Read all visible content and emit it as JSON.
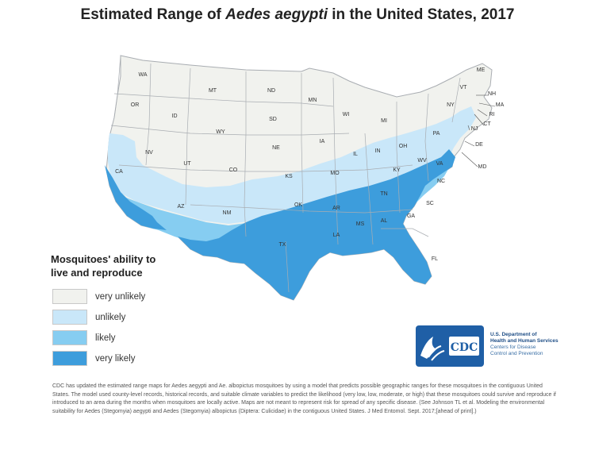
{
  "title": {
    "prefix": "Estimated Range of ",
    "species": "Aedes aegypti",
    "suffix": " in the United States, 2017"
  },
  "legend": {
    "title_line1": "Mosquitoes' ability to",
    "title_line2": "live and reproduce",
    "items": [
      {
        "label": "very unlikely",
        "color": "#f1f2ee"
      },
      {
        "label": "unlikely",
        "color": "#c9e7f9"
      },
      {
        "label": "likely",
        "color": "#86cdf1"
      },
      {
        "label": "very likely",
        "color": "#3d9ddc"
      }
    ]
  },
  "states": [
    "WA",
    "OR",
    "MT",
    "ID",
    "ND",
    "SD",
    "WY",
    "MN",
    "WI",
    "MI",
    "NE",
    "IA",
    "NV",
    "UT",
    "CO",
    "KS",
    "IL",
    "IN",
    "OH",
    "PA",
    "NY",
    "VT",
    "ME",
    "NH",
    "MA",
    "RI",
    "CT",
    "NJ",
    "DE",
    "MD",
    "WV",
    "VA",
    "KY",
    "MO",
    "CA",
    "AZ",
    "NM",
    "OK",
    "AR",
    "TN",
    "NC",
    "SC",
    "GA",
    "AL",
    "MS",
    "LA",
    "TX",
    "FL"
  ],
  "logo": {
    "mark": "CDC",
    "line1": "U.S. Department of",
    "line2": "Health and Human Services",
    "line3": "Centers for Disease",
    "line4": "Control and Prevention"
  },
  "footnote": {
    "p1": "CDC has updated the estimated range maps for Aedes aegypti and Ae. albopictus mosquitoes by using a model that predicts possible geographic ranges for these mosquitoes in the contiguous United States. The model used county-level records, historical records, and suitable climate variables to predict the likelihood (very low, low, moderate, or high) that these mosquitoes could survive and reproduce if introduced to an area during the months when mosquitoes are locally active. Maps are not meant to represent risk for spread of any specific disease. (See Johnson TL et al. Modeling the environmental suitability for Aedes (Stegomyia) aegypti and Aedes (Stegomyia) albopictus (Diptera: Culicidae) in the contiguous United States. J Med Entomol. Sept. 2017;[ahead of print].)"
  },
  "colors": {
    "very_unlikely": "#f1f2ee",
    "unlikely": "#c9e7f9",
    "likely": "#86cdf1",
    "very_likely": "#3d9ddc",
    "border": "#9aa0a6"
  }
}
